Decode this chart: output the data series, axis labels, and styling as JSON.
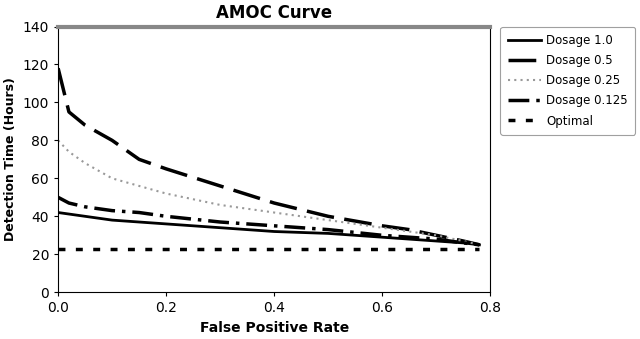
{
  "title": "AMOC Curve",
  "xlabel": "False Positive Rate",
  "ylabel": "Detection Time (Hours)",
  "xlim": [
    0,
    0.8
  ],
  "ylim": [
    0,
    140
  ],
  "yticks": [
    0,
    20,
    40,
    60,
    80,
    100,
    120,
    140
  ],
  "xticks": [
    0.0,
    0.2,
    0.4,
    0.6,
    0.8
  ],
  "legend_entries": [
    "Dosage 1.0",
    "Dosage 0.5",
    "Dosage 0.25",
    "Dosage 0.125",
    "Optimal"
  ],
  "curves": {
    "dosage_1_0": {
      "x": [
        0.0,
        0.05,
        0.1,
        0.15,
        0.2,
        0.3,
        0.4,
        0.5,
        0.6,
        0.65,
        0.7,
        0.75,
        0.78
      ],
      "y": [
        42,
        40,
        38,
        37,
        36,
        34,
        32,
        31,
        29,
        28,
        27,
        26,
        25
      ],
      "color": "#000000",
      "linewidth": 2.0
    },
    "dosage_0_5": {
      "x": [
        0.0,
        0.02,
        0.05,
        0.1,
        0.15,
        0.2,
        0.3,
        0.4,
        0.5,
        0.6,
        0.65,
        0.7,
        0.75,
        0.78
      ],
      "y": [
        118,
        95,
        88,
        80,
        70,
        65,
        56,
        47,
        40,
        35,
        33,
        30,
        27,
        25
      ],
      "color": "#000000",
      "linewidth": 2.5
    },
    "dosage_0_25": {
      "x": [
        0.0,
        0.02,
        0.05,
        0.1,
        0.15,
        0.2,
        0.3,
        0.4,
        0.5,
        0.6,
        0.65,
        0.7,
        0.75,
        0.78
      ],
      "y": [
        80,
        74,
        68,
        60,
        56,
        52,
        46,
        42,
        38,
        34,
        32,
        30,
        27,
        25
      ],
      "color": "#999999",
      "linewidth": 1.5
    },
    "dosage_0_125": {
      "x": [
        0.0,
        0.02,
        0.05,
        0.1,
        0.15,
        0.2,
        0.3,
        0.4,
        0.5,
        0.6,
        0.65,
        0.7,
        0.75,
        0.78
      ],
      "y": [
        50,
        47,
        45,
        43,
        42,
        40,
        37,
        35,
        33,
        30,
        29,
        28,
        26,
        25
      ],
      "color": "#000000",
      "linewidth": 2.5
    },
    "optimal": {
      "x": [
        0.0,
        0.78
      ],
      "y": [
        23,
        23
      ],
      "color": "#000000",
      "linewidth": 2.5
    }
  },
  "background_color": "#ffffff",
  "top_spine_color": "#888888"
}
